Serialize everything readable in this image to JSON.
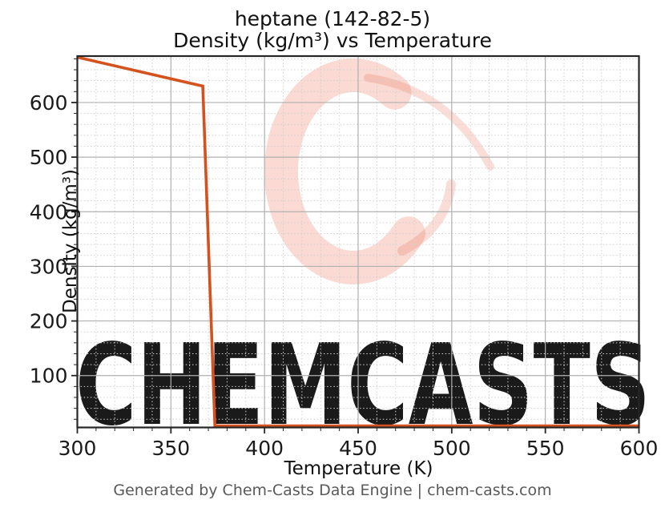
{
  "title": {
    "line1": "heptane (142-82-5)",
    "line2": "Density (kg/m³) vs Temperature"
  },
  "footer": {
    "text": "Generated by Chem-Casts Data Engine | chem-casts.com"
  },
  "watermark": {
    "text": "CHEMCASTS",
    "logo": "chemcasts-c-swirl",
    "color": "#e2502a"
  },
  "chart_data": {
    "type": "line",
    "title": "heptane (142-82-5)",
    "subtitle": "Density (kg/m³) vs Temperature",
    "xlabel": "Temperature (K)",
    "ylabel": "Density (kg/m³)",
    "xlim": [
      300,
      600
    ],
    "ylim": [
      5,
      685
    ],
    "xticks": [
      300,
      350,
      400,
      450,
      500,
      550,
      600
    ],
    "yticks": [
      100,
      200,
      300,
      400,
      500,
      600
    ],
    "x_minor_step": 10,
    "y_minor_step": 20,
    "grid": true,
    "legend": false,
    "line_color": "#d4521e",
    "series": [
      {
        "name": "Density",
        "x": [
          300,
          367,
          373.5,
          600
        ],
        "y": [
          683,
          630,
          8,
          8
        ],
        "note_points": "liquid density falls linearly 683→630 kg/m³ from 300 K to ~367 K, plunges to ~8 kg/m³ at the boiling point ~373 K, then stays flat to 600 K"
      }
    ]
  }
}
